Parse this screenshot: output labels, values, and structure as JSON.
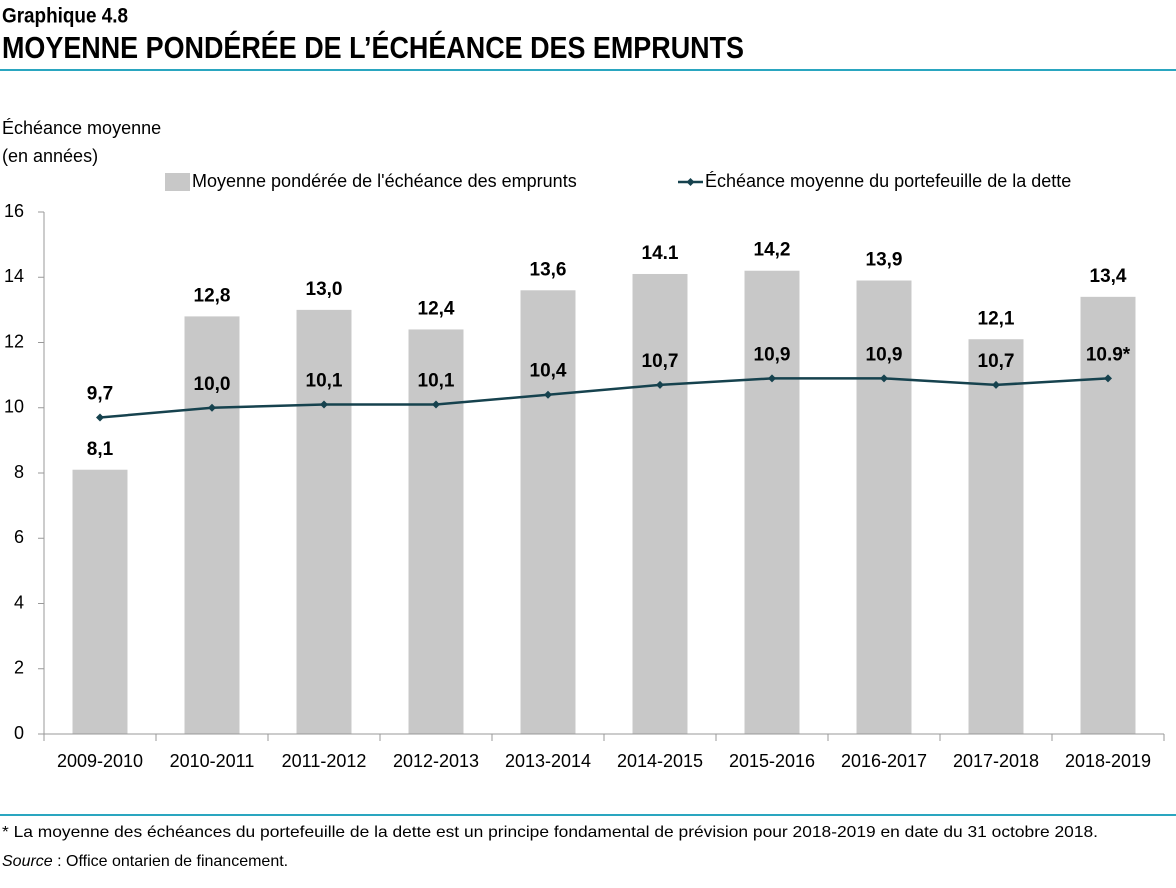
{
  "chart_data": {
    "type": "bar_line",
    "label": "Graphique 4.8",
    "title": "MOYENNE PONDÉRÉE DE L’ÉCHÉANCE DES EMPRUNTS",
    "y_label": [
      "Échéance moyenne",
      "(en années)"
    ],
    "categories": [
      "2009-2010",
      "2010-2011",
      "2011-2012",
      "2012-2013",
      "2013-2014",
      "2014-2015",
      "2015-2016",
      "2016-2017",
      "2017-2018",
      "2018-2019"
    ],
    "series": [
      {
        "name": "Moyenne pondérée de l'échéance des emprunts",
        "type": "bar",
        "color": "#c8c8c8",
        "values": [
          8.1,
          12.8,
          13.0,
          12.4,
          13.6,
          14.1,
          14.2,
          13.9,
          12.1,
          13.4
        ],
        "value_labels": [
          "8,1",
          "12,8",
          "13,0",
          "12,4",
          "13,6",
          "14.1",
          "14,2",
          "13,9",
          "12,1",
          "13,4"
        ]
      },
      {
        "name": "Échéance moyenne du portefeuille de la dette",
        "type": "line",
        "color": "#16424e",
        "values": [
          9.7,
          10.0,
          10.1,
          10.1,
          10.4,
          10.7,
          10.9,
          10.9,
          10.7,
          10.9
        ],
        "value_labels": [
          "9,7",
          "10,0",
          "10,1",
          "10,1",
          "10,4",
          "10,7",
          "10,9",
          "10,9",
          "10,7",
          "10.9*"
        ]
      }
    ],
    "ylim": [
      0,
      16
    ],
    "yticks": [
      0,
      2,
      4,
      6,
      8,
      10,
      12,
      14,
      16
    ],
    "grid": false,
    "footnote": "* La moyenne des échéances du portefeuille de la dette est un principe fondamental de prévision pour 2018-2019 en date du 31 octobre 2018.",
    "source_label": "Source",
    "source_text": " : Office ontarien de financement."
  }
}
